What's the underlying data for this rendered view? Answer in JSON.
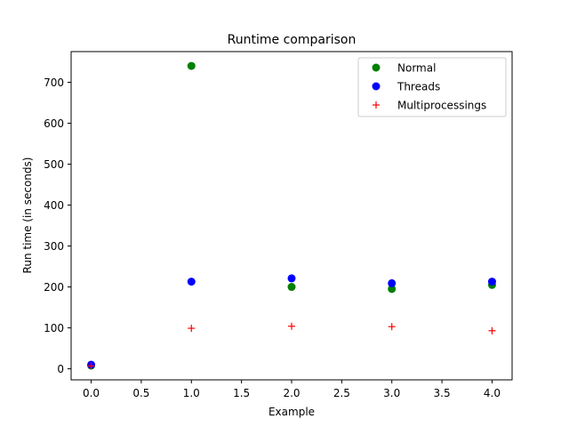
{
  "chart_data": {
    "type": "scatter",
    "title": "Runtime comparison",
    "xlabel": "Example",
    "ylabel": "Run time (in seconds)",
    "xlim": [
      -0.2,
      4.2
    ],
    "ylim": [
      -27,
      775
    ],
    "xticks": [
      0.0,
      0.5,
      1.0,
      1.5,
      2.0,
      2.5,
      3.0,
      3.5,
      4.0
    ],
    "xtick_labels": [
      "0.0",
      "0.5",
      "1.0",
      "1.5",
      "2.0",
      "2.5",
      "3.0",
      "3.5",
      "4.0"
    ],
    "yticks": [
      0,
      100,
      200,
      300,
      400,
      500,
      600,
      700
    ],
    "ytick_labels": [
      "0",
      "100",
      "200",
      "300",
      "400",
      "500",
      "600",
      "700"
    ],
    "grid": false,
    "legend_position": "top-right",
    "series": [
      {
        "name": "Normal",
        "marker": "circle",
        "color": "#008000",
        "x": [
          0,
          1,
          2,
          3,
          4
        ],
        "y": [
          8,
          740,
          200,
          195,
          205
        ]
      },
      {
        "name": "Threads",
        "marker": "circle",
        "color": "#0000ff",
        "x": [
          0,
          1,
          2,
          3,
          4
        ],
        "y": [
          10,
          213,
          221,
          209,
          213
        ]
      },
      {
        "name": "Multiprocessings",
        "marker": "plus",
        "color": "#ff0000",
        "x": [
          0,
          1,
          2,
          3,
          4
        ],
        "y": [
          7,
          99,
          104,
          103,
          93
        ]
      }
    ]
  }
}
